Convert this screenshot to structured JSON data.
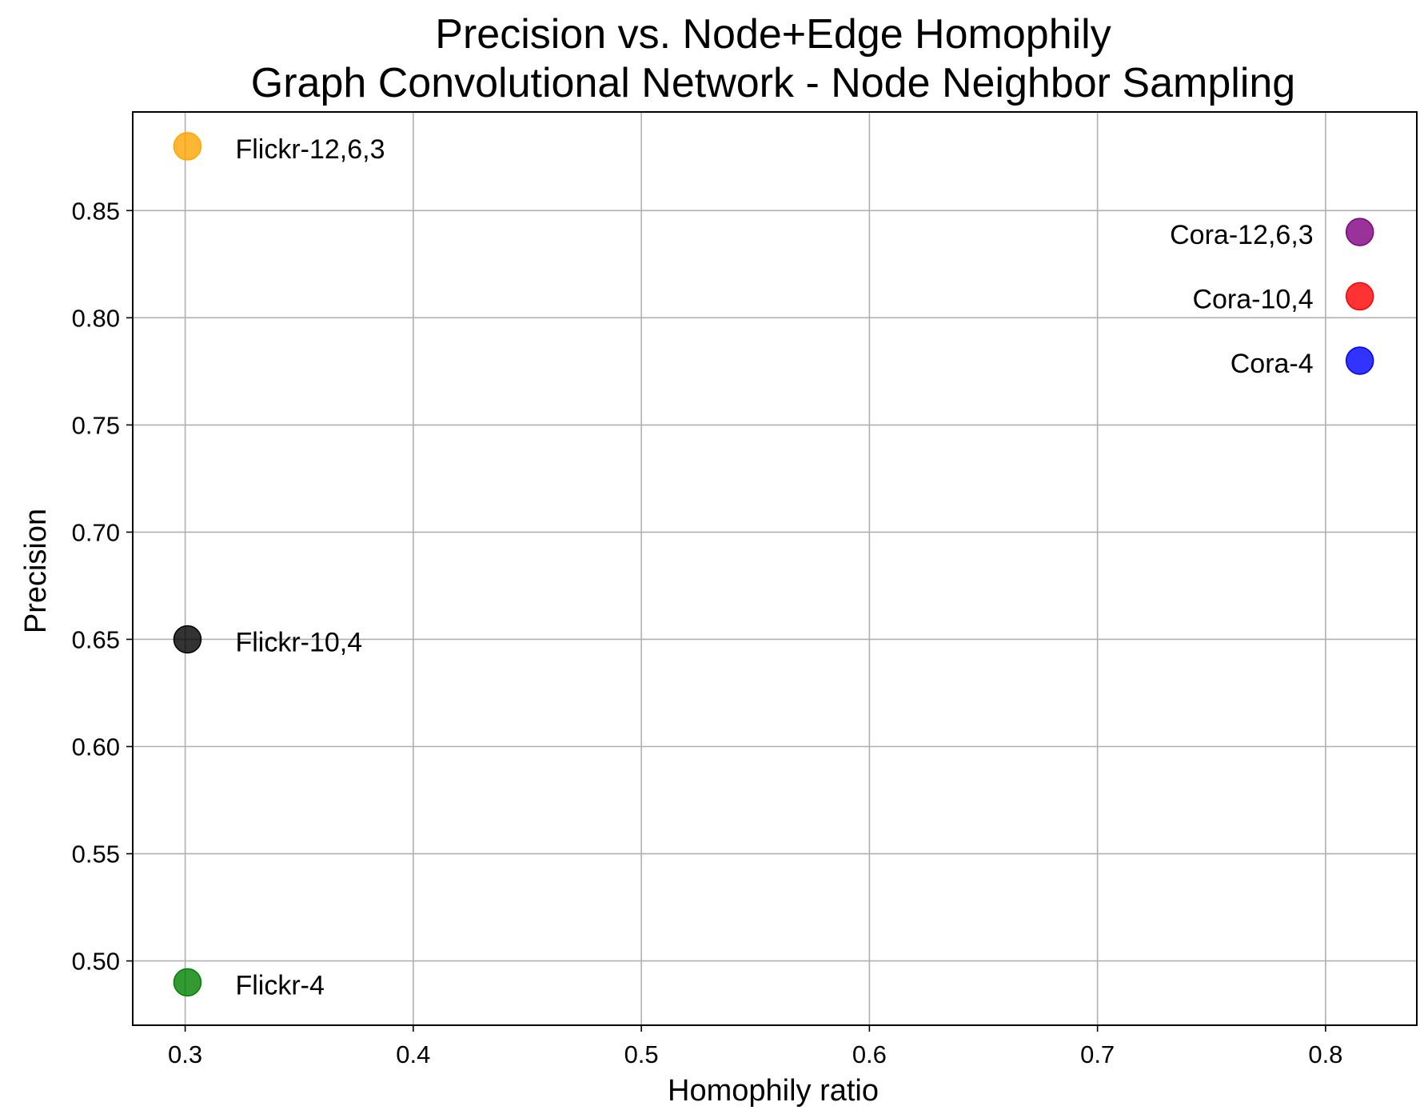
{
  "chart_data": {
    "type": "scatter",
    "title": "Precision vs. Node+Edge Homophily",
    "subtitle": "Graph Convolutional Network - Node Neighbor Sampling",
    "xlabel": "Homophily ratio",
    "ylabel": "Precision",
    "xlim": [
      0.277,
      0.84
    ],
    "ylim": [
      0.47,
      0.896
    ],
    "xticks": [
      {
        "value": 0.3,
        "label": "0.3"
      },
      {
        "value": 0.4,
        "label": "0.4"
      },
      {
        "value": 0.5,
        "label": "0.5"
      },
      {
        "value": 0.6,
        "label": "0.6"
      },
      {
        "value": 0.7,
        "label": "0.7"
      },
      {
        "value": 0.8,
        "label": "0.8"
      }
    ],
    "yticks": [
      {
        "value": 0.5,
        "label": "0.50"
      },
      {
        "value": 0.55,
        "label": "0.55"
      },
      {
        "value": 0.6,
        "label": "0.60"
      },
      {
        "value": 0.65,
        "label": "0.65"
      },
      {
        "value": 0.7,
        "label": "0.70"
      },
      {
        "value": 0.75,
        "label": "0.75"
      },
      {
        "value": 0.8,
        "label": "0.80"
      },
      {
        "value": 0.85,
        "label": "0.85"
      }
    ],
    "grid": true,
    "points": [
      {
        "label": "Flickr-12,6,3",
        "x": 0.301,
        "y": 0.88,
        "color": "#FFA500",
        "label_side": "right"
      },
      {
        "label": "Flickr-10,4",
        "x": 0.301,
        "y": 0.65,
        "color": "#000000",
        "label_side": "right"
      },
      {
        "label": "Flickr-4",
        "x": 0.301,
        "y": 0.49,
        "color": "#008000",
        "label_side": "right"
      },
      {
        "label": "Cora-12,6,3",
        "x": 0.815,
        "y": 0.84,
        "color": "#800080",
        "label_side": "left"
      },
      {
        "label": "Cora-10,4",
        "x": 0.815,
        "y": 0.81,
        "color": "#FF0000",
        "label_side": "left"
      },
      {
        "label": "Cora-4",
        "x": 0.815,
        "y": 0.78,
        "color": "#0000FF",
        "label_side": "left"
      }
    ]
  }
}
